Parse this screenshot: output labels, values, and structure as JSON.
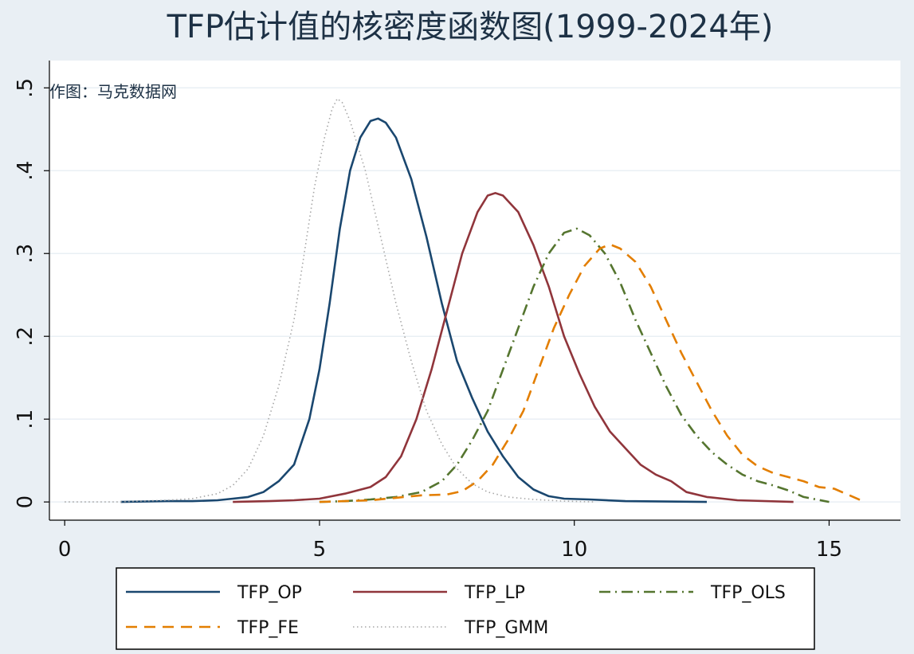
{
  "chart_data": {
    "type": "line",
    "title": "TFP估计值的核密度函数图(1999-2024年)",
    "annotation": "作图：马克数据网",
    "xlabel": "",
    "ylabel": "",
    "xlim": [
      -0.3,
      16.4
    ],
    "ylim": [
      -0.022,
      0.533
    ],
    "x_ticks": [
      0,
      5,
      10,
      15
    ],
    "x_tick_labels": [
      "0",
      "5",
      "10",
      "15"
    ],
    "y_ticks": [
      0,
      0.1,
      0.2,
      0.3,
      0.4,
      0.5
    ],
    "y_tick_labels": [
      "0",
      ".1",
      ".2",
      ".3",
      ".4",
      ".5"
    ],
    "grid": true,
    "legend_position": "bottom",
    "series": [
      {
        "name": "TFP_OP",
        "color": "#1a476f",
        "dash": "solid",
        "points": [
          [
            1.1,
            0
          ],
          [
            2,
            0.001
          ],
          [
            2.5,
            0.001
          ],
          [
            3,
            0.002
          ],
          [
            3.3,
            0.004
          ],
          [
            3.6,
            0.006
          ],
          [
            3.9,
            0.012
          ],
          [
            4.2,
            0.025
          ],
          [
            4.5,
            0.045
          ],
          [
            4.8,
            0.1
          ],
          [
            5.0,
            0.16
          ],
          [
            5.2,
            0.24
          ],
          [
            5.4,
            0.33
          ],
          [
            5.6,
            0.4
          ],
          [
            5.8,
            0.44
          ],
          [
            6.0,
            0.46
          ],
          [
            6.15,
            0.463
          ],
          [
            6.3,
            0.458
          ],
          [
            6.5,
            0.44
          ],
          [
            6.8,
            0.39
          ],
          [
            7.1,
            0.32
          ],
          [
            7.4,
            0.24
          ],
          [
            7.7,
            0.17
          ],
          [
            8.0,
            0.125
          ],
          [
            8.3,
            0.085
          ],
          [
            8.6,
            0.055
          ],
          [
            8.9,
            0.03
          ],
          [
            9.2,
            0.015
          ],
          [
            9.5,
            0.007
          ],
          [
            9.8,
            0.004
          ],
          [
            10.3,
            0.003
          ],
          [
            11,
            0.001
          ],
          [
            12.6,
            0
          ]
        ]
      },
      {
        "name": "TFP_LP",
        "color": "#90353b",
        "dash": "solid",
        "points": [
          [
            3.3,
            0
          ],
          [
            4,
            0.001
          ],
          [
            4.5,
            0.002
          ],
          [
            5,
            0.004
          ],
          [
            5.5,
            0.01
          ],
          [
            6,
            0.018
          ],
          [
            6.3,
            0.03
          ],
          [
            6.6,
            0.055
          ],
          [
            6.9,
            0.1
          ],
          [
            7.2,
            0.16
          ],
          [
            7.5,
            0.23
          ],
          [
            7.8,
            0.3
          ],
          [
            8.1,
            0.35
          ],
          [
            8.3,
            0.37
          ],
          [
            8.45,
            0.373
          ],
          [
            8.6,
            0.37
          ],
          [
            8.9,
            0.35
          ],
          [
            9.2,
            0.31
          ],
          [
            9.5,
            0.26
          ],
          [
            9.8,
            0.2
          ],
          [
            10.1,
            0.155
          ],
          [
            10.4,
            0.115
          ],
          [
            10.7,
            0.085
          ],
          [
            11.0,
            0.065
          ],
          [
            11.3,
            0.045
          ],
          [
            11.6,
            0.033
          ],
          [
            11.9,
            0.025
          ],
          [
            12.2,
            0.012
          ],
          [
            12.6,
            0.006
          ],
          [
            13.2,
            0.002
          ],
          [
            14.3,
            0
          ]
        ]
      },
      {
        "name": "TFP_OLS",
        "color": "#55752f",
        "dash": "dashdot",
        "points": [
          [
            5,
            0
          ],
          [
            5.5,
            0.001
          ],
          [
            6,
            0.003
          ],
          [
            6.5,
            0.006
          ],
          [
            7,
            0.012
          ],
          [
            7.4,
            0.025
          ],
          [
            7.7,
            0.045
          ],
          [
            8.0,
            0.075
          ],
          [
            8.3,
            0.11
          ],
          [
            8.6,
            0.16
          ],
          [
            8.9,
            0.21
          ],
          [
            9.2,
            0.26
          ],
          [
            9.5,
            0.3
          ],
          [
            9.8,
            0.325
          ],
          [
            10.05,
            0.33
          ],
          [
            10.3,
            0.322
          ],
          [
            10.6,
            0.3
          ],
          [
            10.9,
            0.265
          ],
          [
            11.2,
            0.22
          ],
          [
            11.5,
            0.18
          ],
          [
            11.8,
            0.14
          ],
          [
            12.1,
            0.105
          ],
          [
            12.4,
            0.08
          ],
          [
            12.7,
            0.06
          ],
          [
            13.0,
            0.045
          ],
          [
            13.3,
            0.033
          ],
          [
            13.6,
            0.025
          ],
          [
            13.9,
            0.02
          ],
          [
            14.2,
            0.014
          ],
          [
            14.5,
            0.006
          ],
          [
            15.0,
            0
          ]
        ]
      },
      {
        "name": "TFP_FE",
        "color": "#e37e00",
        "dash": "dash",
        "points": [
          [
            5,
            0
          ],
          [
            5.5,
            0.001
          ],
          [
            6,
            0.002
          ],
          [
            6.5,
            0.005
          ],
          [
            7,
            0.008
          ],
          [
            7.5,
            0.009
          ],
          [
            7.8,
            0.013
          ],
          [
            8.1,
            0.025
          ],
          [
            8.4,
            0.045
          ],
          [
            8.7,
            0.075
          ],
          [
            9.0,
            0.11
          ],
          [
            9.3,
            0.16
          ],
          [
            9.6,
            0.21
          ],
          [
            9.9,
            0.25
          ],
          [
            10.2,
            0.285
          ],
          [
            10.5,
            0.306
          ],
          [
            10.7,
            0.311
          ],
          [
            10.9,
            0.306
          ],
          [
            11.2,
            0.29
          ],
          [
            11.5,
            0.26
          ],
          [
            11.8,
            0.22
          ],
          [
            12.1,
            0.18
          ],
          [
            12.4,
            0.145
          ],
          [
            12.7,
            0.11
          ],
          [
            13.0,
            0.08
          ],
          [
            13.3,
            0.057
          ],
          [
            13.6,
            0.043
          ],
          [
            13.9,
            0.035
          ],
          [
            14.2,
            0.03
          ],
          [
            14.5,
            0.025
          ],
          [
            14.8,
            0.018
          ],
          [
            15.1,
            0.016
          ],
          [
            15.4,
            0.008
          ],
          [
            15.7,
            0
          ]
        ]
      },
      {
        "name": "TFP_GMM",
        "color": "#a6a6a6",
        "dash": "dot",
        "points": [
          [
            0,
            0
          ],
          [
            1,
            0
          ],
          [
            2,
            0.002
          ],
          [
            2.5,
            0.004
          ],
          [
            3,
            0.01
          ],
          [
            3.3,
            0.02
          ],
          [
            3.6,
            0.04
          ],
          [
            3.9,
            0.08
          ],
          [
            4.2,
            0.14
          ],
          [
            4.5,
            0.22
          ],
          [
            4.7,
            0.3
          ],
          [
            4.9,
            0.38
          ],
          [
            5.1,
            0.44
          ],
          [
            5.25,
            0.475
          ],
          [
            5.35,
            0.487
          ],
          [
            5.45,
            0.482
          ],
          [
            5.6,
            0.46
          ],
          [
            5.9,
            0.4
          ],
          [
            6.2,
            0.32
          ],
          [
            6.5,
            0.24
          ],
          [
            6.8,
            0.17
          ],
          [
            7.1,
            0.11
          ],
          [
            7.4,
            0.07
          ],
          [
            7.7,
            0.04
          ],
          [
            8.0,
            0.022
          ],
          [
            8.3,
            0.012
          ],
          [
            8.7,
            0.006
          ],
          [
            9.2,
            0.003
          ],
          [
            9.8,
            0.001
          ],
          [
            10.4,
            0
          ]
        ]
      }
    ]
  }
}
